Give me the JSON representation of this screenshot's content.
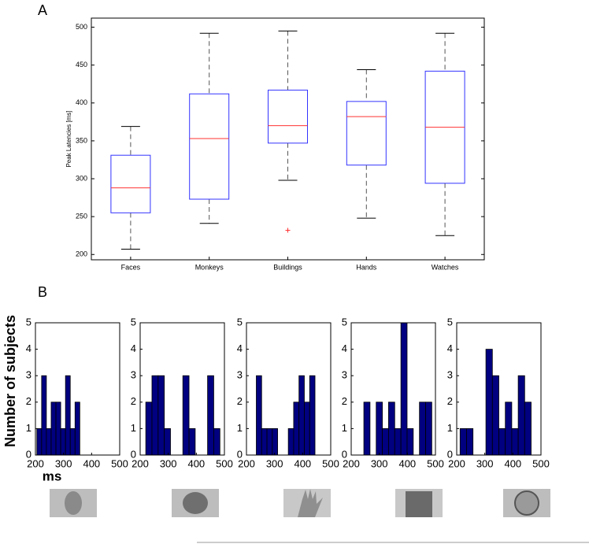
{
  "chart_data": [
    {
      "type": "box",
      "label": "A",
      "ylabel": "Peak Latencies [ms]",
      "categories": [
        "Faces",
        "Monkeys",
        "Buildings",
        "Hands",
        "Watches"
      ],
      "stats": [
        {
          "min": 207,
          "q1": 255,
          "median": 288,
          "q3": 331,
          "max": 369
        },
        {
          "min": 241,
          "q1": 273,
          "median": 353,
          "q3": 412,
          "max": 492
        },
        {
          "min": 298,
          "q1": 347,
          "median": 370,
          "q3": 417,
          "max": 495
        },
        {
          "min": 248,
          "q1": 318,
          "median": 382,
          "q3": 402,
          "max": 444
        },
        {
          "min": 225,
          "q1": 294,
          "median": 368,
          "q3": 442,
          "max": 492
        }
      ],
      "outliers": [
        [],
        [],
        [
          232
        ],
        [],
        []
      ],
      "box_color": "#3333ff",
      "median_color": "#ff3333",
      "ylim": [
        193,
        512
      ],
      "yticks": [
        200,
        250,
        300,
        350,
        400,
        450,
        500
      ]
    },
    {
      "type": "histogram",
      "label": "B",
      "ylabel": "Number of subjects",
      "xlabel": "ms",
      "color": "#000080",
      "bins": [
        205,
        222,
        239,
        256,
        273,
        290,
        307,
        324,
        341,
        358
      ],
      "values": [
        1,
        3,
        1,
        2,
        2,
        1,
        3,
        1,
        2
      ],
      "xlim": [
        200,
        500
      ],
      "xticks": [
        200,
        300,
        400,
        500
      ],
      "ylim": [
        0,
        5
      ],
      "yticks": [
        0,
        1,
        2,
        3,
        4,
        5
      ]
    },
    {
      "type": "histogram",
      "color": "#000080",
      "bins": [
        220,
        242,
        264,
        286,
        308,
        330,
        352,
        374,
        396,
        418,
        440,
        462,
        484
      ],
      "values": [
        2,
        3,
        3,
        1,
        0,
        0,
        3,
        1,
        0,
        0,
        3,
        1
      ],
      "xlim": [
        200,
        500
      ],
      "xticks": [
        200,
        300,
        400,
        500
      ],
      "ylim": [
        0,
        5
      ],
      "yticks": [
        0,
        1,
        2,
        3,
        4,
        5
      ]
    },
    {
      "type": "histogram",
      "color": "#000080",
      "bins": [
        235,
        254,
        273,
        292,
        311,
        330,
        349,
        368,
        387,
        406,
        425,
        444
      ],
      "values": [
        3,
        1,
        1,
        1,
        0,
        0,
        1,
        2,
        3,
        2,
        3
      ],
      "xlim": [
        200,
        500
      ],
      "xticks": [
        200,
        300,
        400,
        500
      ],
      "ylim": [
        0,
        5
      ],
      "yticks": [
        0,
        1,
        2,
        3,
        4,
        5
      ]
    },
    {
      "type": "histogram",
      "color": "#000080",
      "bins": [
        245,
        267,
        289,
        311,
        333,
        355,
        377,
        399,
        421,
        443,
        465,
        487
      ],
      "values": [
        2,
        0,
        2,
        1,
        2,
        1,
        5,
        1,
        0,
        2,
        2
      ],
      "xlim": [
        200,
        500
      ],
      "xticks": [
        200,
        300,
        400,
        500
      ],
      "ylim": [
        0,
        5
      ],
      "yticks": [
        0,
        1,
        2,
        3,
        4,
        5
      ]
    },
    {
      "type": "histogram",
      "color": "#000080",
      "bins": [
        212,
        235,
        258,
        281,
        304,
        327,
        350,
        373,
        396,
        419,
        442,
        465
      ],
      "values": [
        1,
        1,
        0,
        0,
        4,
        3,
        1,
        2,
        1,
        3,
        2
      ],
      "xlim": [
        200,
        500
      ],
      "xticks": [
        200,
        300,
        400,
        500
      ],
      "ylim": [
        0,
        5
      ],
      "yticks": [
        0,
        1,
        2,
        3,
        4,
        5
      ]
    }
  ]
}
